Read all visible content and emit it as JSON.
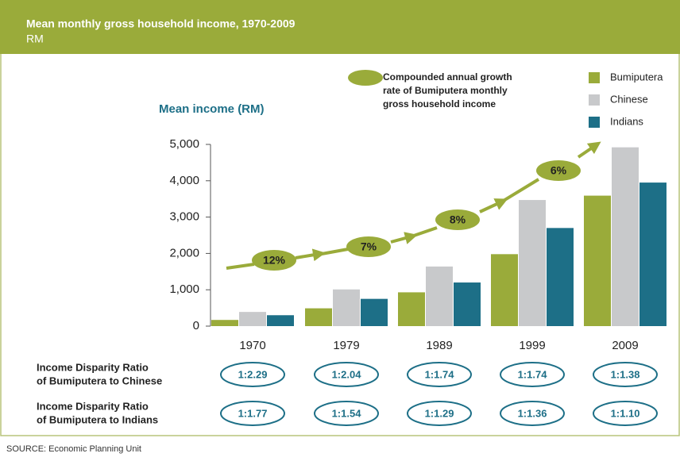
{
  "chart_data": {
    "type": "bar",
    "title": "Mean monthly gross household income, 1970-2009",
    "subtitle": "RM",
    "y_axis_label": "Mean income (RM)",
    "categories": [
      "1970",
      "1979",
      "1989",
      "1999",
      "2009"
    ],
    "series": [
      {
        "name": "Bumiputera",
        "color": "#9aab3a",
        "values": [
          170,
          490,
          930,
          1980,
          3590
        ]
      },
      {
        "name": "Chinese",
        "color": "#c8c9cb",
        "values": [
          390,
          1010,
          1640,
          3470,
          4920
        ]
      },
      {
        "name": "Indians",
        "color": "#1d6f87",
        "values": [
          300,
          750,
          1200,
          2700,
          3950
        ]
      }
    ],
    "ylim": [
      0,
      5000
    ],
    "yticks": [
      0,
      {
        "value": 1000,
        "label": "1,000"
      },
      {
        "value": 2000,
        "label": "2,000"
      },
      {
        "value": 3000,
        "label": "3,000"
      },
      {
        "value": 4000,
        "label": "4,000"
      },
      {
        "value": 5000,
        "label": "5,000"
      }
    ],
    "growth_legend": [
      "Compounded annual growth",
      "rate of Bumiputera monthly",
      "gross household income"
    ],
    "growth_rates": [
      "12%",
      "7%",
      "8%",
      "6%"
    ],
    "ratio_rows": [
      {
        "label": [
          "Income Disparity Ratio",
          "of Bumiputera to Chinese"
        ],
        "values": [
          "1:2.29",
          "1:2.04",
          "1:1.74",
          "1:1.74",
          "1:1.38"
        ]
      },
      {
        "label": [
          "Income Disparity Ratio",
          "of Bumiputera to Indians"
        ],
        "values": [
          "1:1.77",
          "1:1.54",
          "1:1.29",
          "1:1.36",
          "1:1.10"
        ]
      }
    ],
    "source": "SOURCE: Economic Planning Unit"
  }
}
